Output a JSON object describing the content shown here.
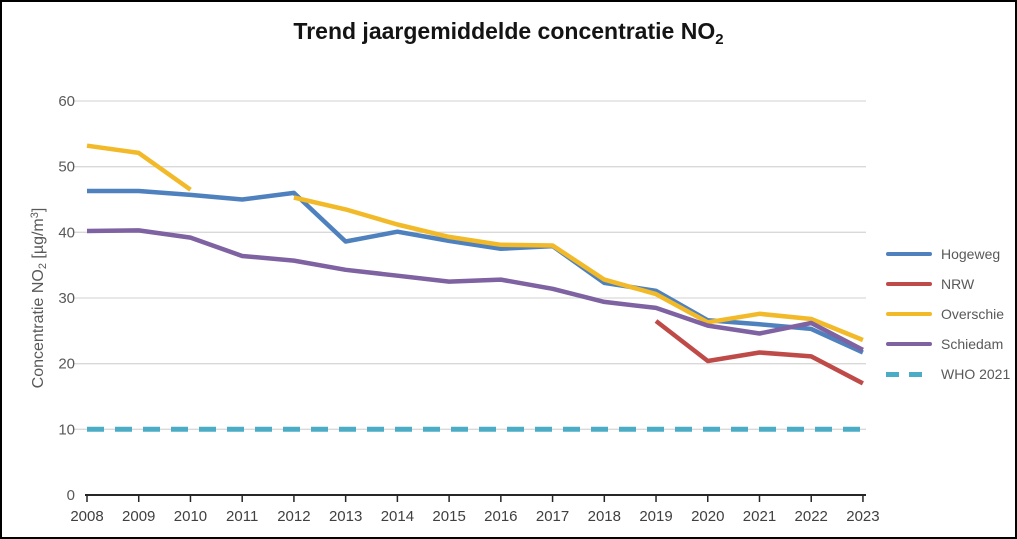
{
  "title": {
    "main": "Trend jaargemiddelde concentratie NO",
    "sub": "2"
  },
  "y_axis": {
    "p1": "Concentratie NO",
    "sub": "2",
    "p2": " [µg/m",
    "sup": "3",
    "p3": "]"
  },
  "colors": {
    "gridline": "#D9D9D9",
    "axis_line": "#262626",
    "y_tick_text": "#595959",
    "x_tick_text": "#404040",
    "title_text": "#141414",
    "background": "#FFFFFF",
    "border": "#000000"
  },
  "chart_data": {
    "type": "line",
    "title": "Trend jaargemiddelde concentratie NO2",
    "xlabel": "",
    "ylabel": "Concentratie NO2 [µg/m3]",
    "ylim": [
      0,
      60
    ],
    "yticks": [
      0,
      10,
      20,
      30,
      40,
      50,
      60
    ],
    "grid": true,
    "legend_position": "right",
    "categories": [
      "2008",
      "2009",
      "2010",
      "2011",
      "2012",
      "2013",
      "2014",
      "2015",
      "2016",
      "2017",
      "2018",
      "2019",
      "2020",
      "2021",
      "2022",
      "2023"
    ],
    "series": [
      {
        "name": "Hogeweg",
        "color": "#4E81BD",
        "style": "solid",
        "values": [
          46.3,
          46.3,
          45.7,
          45.0,
          46.0,
          38.6,
          40.1,
          38.7,
          37.5,
          37.9,
          32.3,
          31.1,
          26.6,
          26.0,
          25.3,
          21.7
        ]
      },
      {
        "name": "NRW",
        "color": "#BE4B48",
        "style": "solid",
        "values": [
          null,
          null,
          null,
          null,
          null,
          null,
          null,
          null,
          null,
          null,
          null,
          26.5,
          20.4,
          21.7,
          21.1,
          17.0
        ]
      },
      {
        "name": "Overschie",
        "color": "#F2B929",
        "style": "solid",
        "values": [
          53.2,
          52.1,
          46.5,
          null,
          45.3,
          43.5,
          41.2,
          39.3,
          38.1,
          38.0,
          32.8,
          30.6,
          26.3,
          27.6,
          26.8,
          23.6
        ]
      },
      {
        "name": "Schiedam",
        "color": "#7E62A1",
        "style": "solid",
        "values": [
          40.2,
          40.3,
          39.2,
          36.4,
          35.7,
          34.3,
          33.4,
          32.5,
          32.8,
          31.4,
          29.4,
          28.5,
          25.8,
          24.6,
          26.2,
          22.1
        ]
      },
      {
        "name": "WHO 2021",
        "color": "#4BACC6",
        "style": "dashed",
        "values": [
          10,
          10,
          10,
          10,
          10,
          10,
          10,
          10,
          10,
          10,
          10,
          10,
          10,
          10,
          10,
          10
        ]
      }
    ]
  }
}
